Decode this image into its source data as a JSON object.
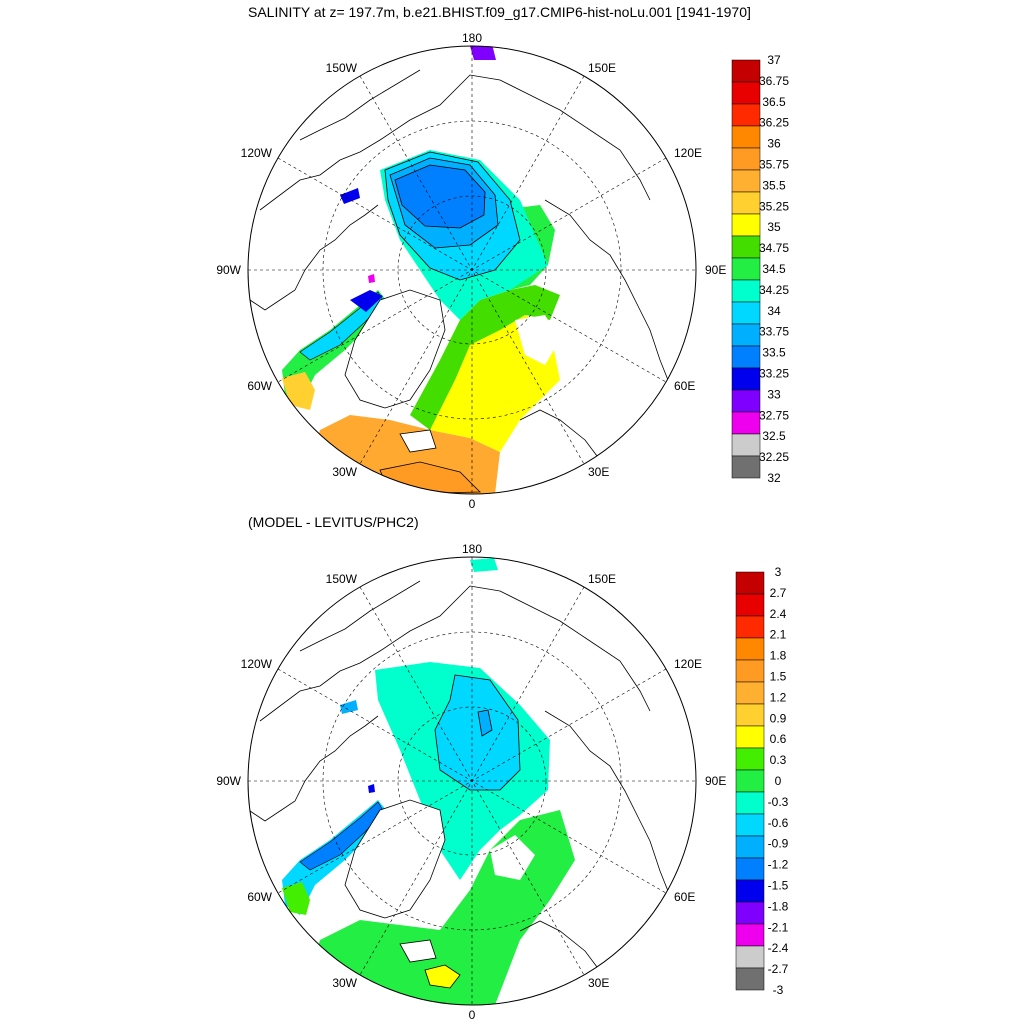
{
  "top_panel": {
    "title": "SALINITY at z= 197.7m, b.e21.BHIST.f09_g17.CMIP6-hist-noLu.001 [1941-1970]",
    "colorbar": {
      "labels": [
        "37",
        "36.75",
        "36.5",
        "36.25",
        "36",
        "35.75",
        "35.5",
        "35.25",
        "35",
        "34.75",
        "34.5",
        "34.25",
        "34",
        "33.75",
        "33.5",
        "33.25",
        "33",
        "32.75",
        "32.5",
        "32.25",
        "32"
      ],
      "colors": [
        "#c40000",
        "#e80000",
        "#ff2a00",
        "#ff8800",
        "#ff9a22",
        "#ffb030",
        "#ffd030",
        "#ffff00",
        "#44dd00",
        "#22ee44",
        "#00ffcc",
        "#00d8ff",
        "#00b0ff",
        "#0080ff",
        "#0000ee",
        "#8000ff",
        "#ee00ee",
        "#cccccc",
        "#707070"
      ]
    }
  },
  "bottom_panel": {
    "title": "(MODEL - LEVITUS/PHC2)",
    "colorbar": {
      "labels": [
        "3",
        "2.7",
        "2.4",
        "2.1",
        "1.8",
        "1.5",
        "1.2",
        "0.9",
        "0.6",
        "0.3",
        "0",
        "-0.3",
        "-0.6",
        "-0.9",
        "-1.2",
        "-1.5",
        "-1.8",
        "-2.1",
        "-2.4",
        "-2.7",
        "-3"
      ],
      "colors": [
        "#c40000",
        "#e80000",
        "#ff2a00",
        "#ff8800",
        "#ff9a22",
        "#ffb030",
        "#ffd030",
        "#ffff00",
        "#44ee00",
        "#22ee44",
        "#00ffcc",
        "#00d8ff",
        "#00b0ff",
        "#0080ff",
        "#0000ee",
        "#8000ff",
        "#ee00ee",
        "#cccccc",
        "#707070"
      ]
    }
  },
  "longitude_labels": {
    "top": "180",
    "bottom": "0",
    "left": "90W",
    "right": "90E",
    "upper_left_a": "150W",
    "upper_left_b": "120W",
    "lower_left_a": "60W",
    "lower_left_b": "30W",
    "upper_right_a": "150E",
    "upper_right_b": "120E",
    "lower_right_a": "60E",
    "lower_right_b": "30E"
  }
}
